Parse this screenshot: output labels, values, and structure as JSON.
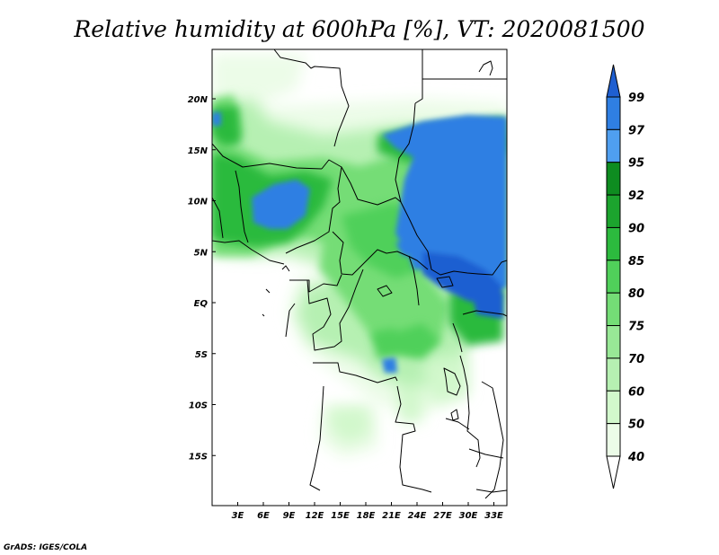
{
  "title": "Relative humidity at 600hPa [%], VT: 2020081500",
  "credit": "GrADS: IGES/COLA",
  "lat_labels": [
    "20N",
    "15N",
    "10N",
    "5N",
    "EQ",
    "5S",
    "10S",
    "15S"
  ],
  "lon_labels": [
    "3E",
    "6E",
    "9E",
    "12E",
    "15E",
    "18E",
    "21E",
    "24E",
    "27E",
    "30E",
    "33E"
  ],
  "colorbar": {
    "labels": [
      "99",
      "97",
      "95",
      "92",
      "90",
      "85",
      "80",
      "75",
      "70",
      "60",
      "50",
      "40"
    ],
    "colors": [
      "#1f5fd1",
      "#2f7fe3",
      "#4f9ff0",
      "#0e8c20",
      "#1ca42e",
      "#2cba3e",
      "#50d05a",
      "#74dd76",
      "#98e896",
      "#b6f0b2",
      "#d2f8cc",
      "#ecfce8"
    ]
  },
  "chart_data": {
    "type": "heatmap",
    "variable": "Relative humidity",
    "level": "600hPa",
    "units": "%",
    "valid_time": "2020081500",
    "lat_range": [
      -19.8,
      24.5
    ],
    "lon_range": [
      0,
      34.5
    ],
    "levels": [
      40,
      50,
      60,
      70,
      75,
      80,
      85,
      90,
      92,
      95,
      97,
      99
    ]
  }
}
